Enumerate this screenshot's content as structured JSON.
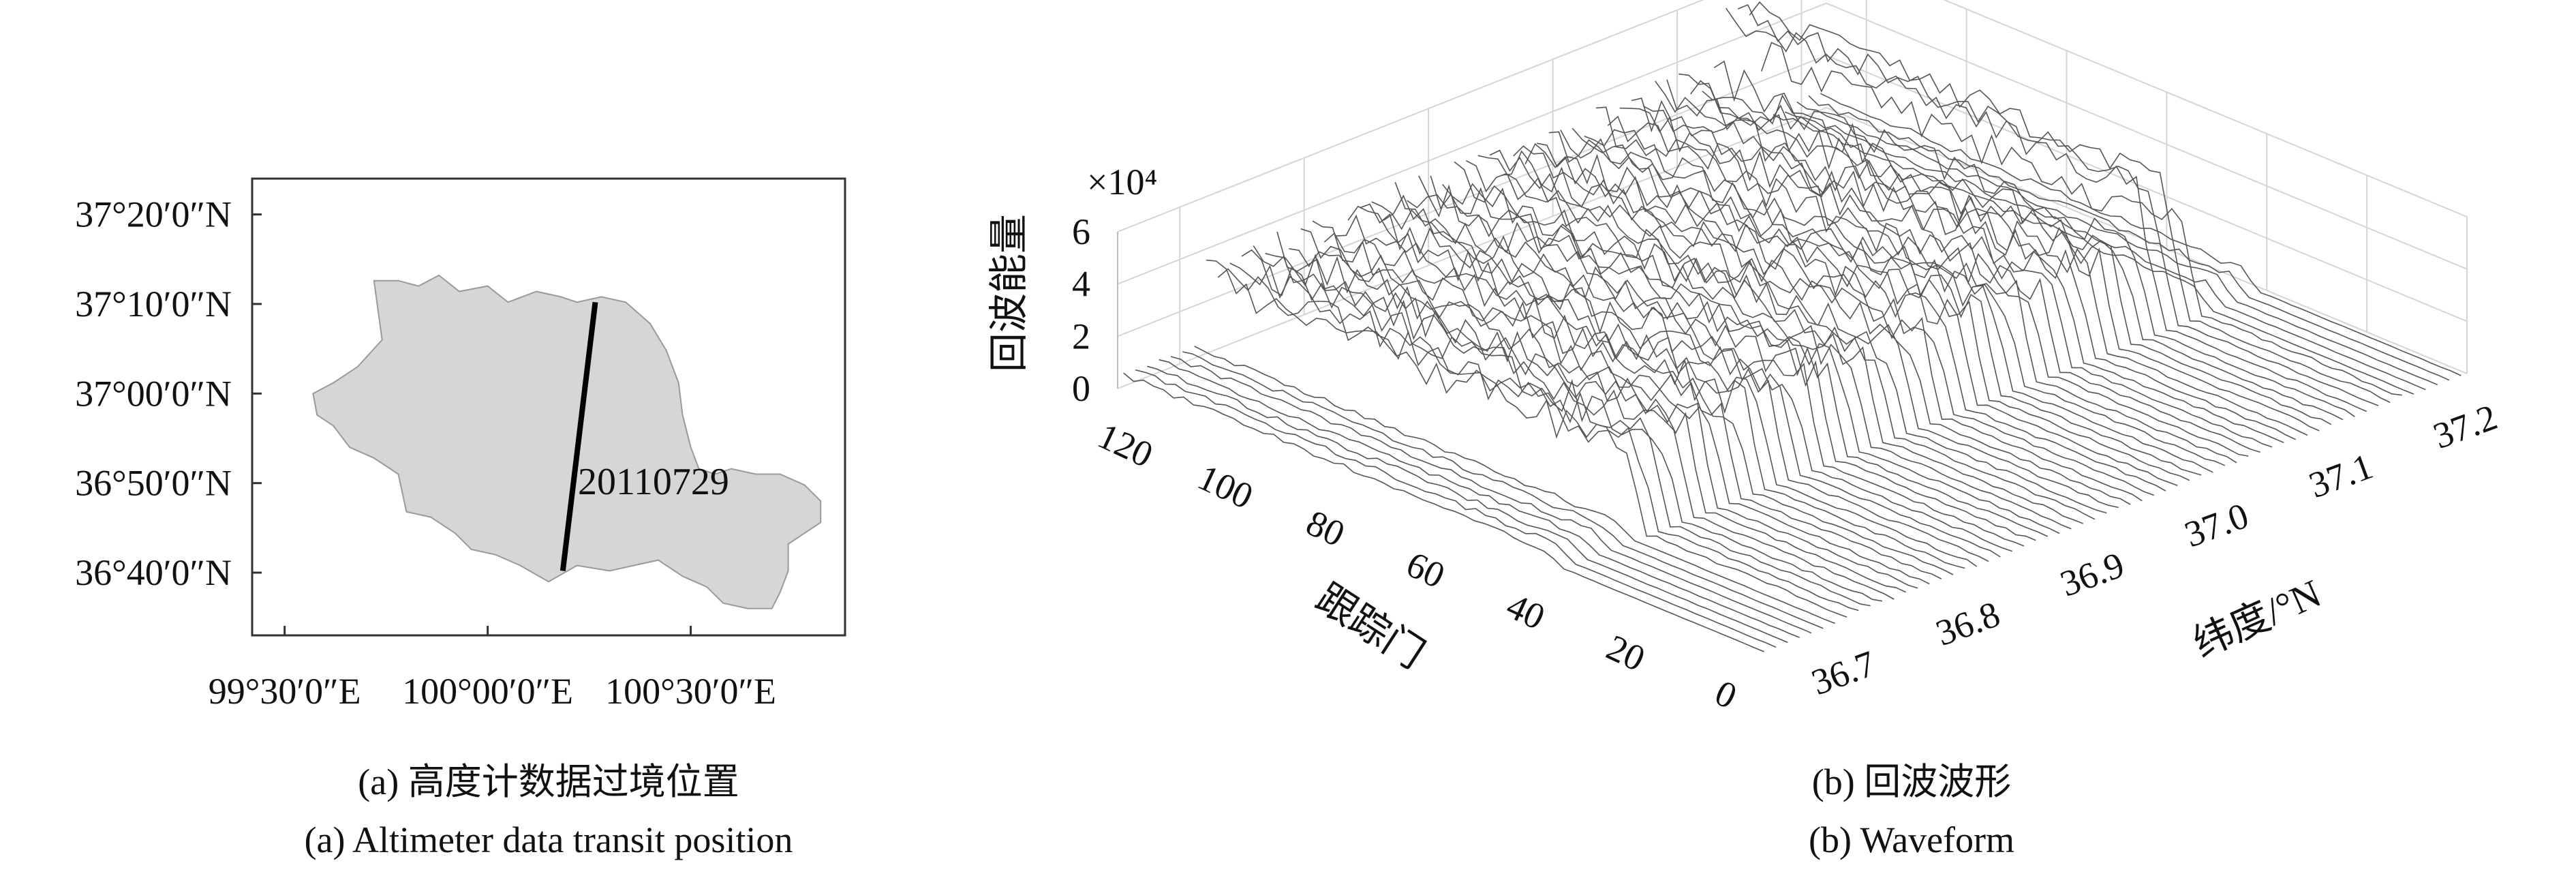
{
  "panel_a": {
    "caption_cn": "(a) 高度计数据过境位置",
    "caption_en": "(a) Altimeter data transit position",
    "lat_ticks": [
      "37°20′0″N",
      "37°10′0″N",
      "37°00′0″N",
      "36°50′0″N",
      "36°40′0″N"
    ],
    "lon_ticks": [
      "99°30′0″E",
      "100°00′0″E",
      "100°30′0″E"
    ],
    "track_label": "20110729",
    "lake_fill": "#d6d6d6",
    "lake_stroke": "#9a9a9a",
    "track_color": "#000000"
  },
  "panel_b": {
    "caption_cn": "(b) 回波波形",
    "caption_en": "(b) Waveform",
    "exponent_label": "×10⁴",
    "zlabel": "回波能量",
    "xlabel": "跟踪门",
    "ylabel": "纬度/°N",
    "z_ticks": [
      "6",
      "4",
      "2",
      "0"
    ],
    "x_ticks": [
      "120",
      "100",
      "80",
      "60",
      "40",
      "20",
      "0"
    ],
    "y_ticks": [
      "36.7",
      "36.8",
      "36.9",
      "37.0",
      "37.1",
      "37.2"
    ],
    "line_color": "#555555"
  },
  "chart_data": [
    {
      "type": "scatter",
      "title": "",
      "xlabel": "",
      "ylabel": "",
      "xlim": [
        99.42,
        100.88
      ],
      "ylim": [
        36.55,
        37.4
      ],
      "x_tick_values": [
        99.5,
        100.0,
        100.5
      ],
      "y_tick_values": [
        37.3333,
        37.1667,
        37.0,
        36.8333,
        36.6667
      ],
      "series": [
        {
          "values_note_lake_outline": "",
          "x": [
            99.72,
            99.78,
            99.83,
            99.88,
            99.93,
            100.0,
            100.05,
            100.12,
            100.18,
            100.22,
            100.28,
            100.34,
            100.4,
            100.44,
            100.47,
            100.48,
            100.5,
            100.52,
            100.56,
            100.6,
            100.66,
            100.72,
            100.78,
            100.82,
            100.82,
            100.78,
            100.74,
            100.74,
            100.72,
            100.7,
            100.64,
            100.58,
            100.54,
            100.48,
            100.42,
            100.36,
            100.3,
            100.22,
            100.15,
            100.08,
            100.02,
            99.96,
            99.92,
            99.86,
            99.8,
            99.78,
            99.72,
            99.66,
            99.62,
            99.58,
            99.57,
            99.62,
            99.68,
            99.74,
            99.72
          ],
          "y": [
            37.21,
            37.21,
            37.2,
            37.22,
            37.19,
            37.2,
            37.17,
            37.19,
            37.18,
            37.17,
            37.18,
            37.17,
            37.13,
            37.08,
            37.02,
            36.96,
            36.9,
            36.86,
            36.85,
            36.86,
            36.85,
            36.85,
            36.83,
            36.8,
            36.76,
            36.74,
            36.72,
            36.67,
            36.63,
            36.6,
            36.6,
            36.61,
            36.64,
            36.66,
            36.69,
            36.68,
            36.67,
            36.68,
            36.65,
            36.68,
            36.7,
            36.71,
            36.74,
            36.77,
            36.78,
            36.85,
            36.88,
            36.9,
            36.94,
            36.96,
            37.0,
            37.02,
            37.05,
            37.1,
            37.21
          ]
        },
        {
          "name": "20110729",
          "x": [
            100.185,
            100.265
          ],
          "y": [
            36.67,
            37.17
          ]
        }
      ]
    },
    {
      "type": "area",
      "title": "",
      "xlabel": "跟踪门",
      "ylabel": "纬度/°N",
      "zlabel": "回波能量",
      "z_multiplier": 10000,
      "xlim": [
        0,
        128
      ],
      "ylim": [
        36.65,
        37.22
      ],
      "zlim": [
        0,
        6
      ],
      "x_tick_values": [
        0,
        20,
        40,
        60,
        80,
        100,
        120
      ],
      "y_tick_values": [
        36.7,
        36.8,
        36.9,
        37.0,
        37.1,
        37.2
      ],
      "z_tick_values": [
        0,
        2,
        4,
        6
      ],
      "grid": true,
      "waveform_count": 60,
      "plateau_gate_range": [
        44,
        128
      ],
      "plateau_level": 3.0,
      "peak_latitude": 37.15,
      "peak_level": 5.0
    }
  ]
}
